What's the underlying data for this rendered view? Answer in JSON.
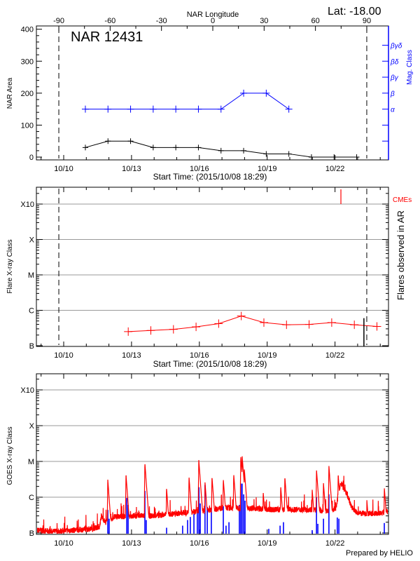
{
  "chart_data": [
    {
      "type": "line",
      "title": "NAR 12431",
      "lat_label": "Lat: -18.00",
      "top_axis_label": "NAR Longitude",
      "top_ticks": [
        "-90",
        "-60",
        "-30",
        "0",
        "30",
        "60",
        "90"
      ],
      "limb_longitudes": [
        -90,
        90
      ],
      "xlabel": "Start Time: (2015/10/08 18:29)",
      "x_ticks": [
        "10/10",
        "10/13",
        "10/16",
        "10/19",
        "10/22"
      ],
      "xlim": [
        "10/08 18:29",
        "10/24 08:50"
      ],
      "ylabel": "NAR Area",
      "ylim": [
        0,
        400
      ],
      "y_ticks": [
        "0",
        "100",
        "200",
        "300",
        "400"
      ],
      "y2label": "Mag. Class",
      "y2_ticks": [
        {
          "value": 50,
          "label": ""
        },
        {
          "value": 100,
          "label": ""
        },
        {
          "value": 150,
          "label": "α"
        },
        {
          "value": 200,
          "label": "β"
        },
        {
          "value": 250,
          "label": "βγ"
        },
        {
          "value": 300,
          "label": "βδ"
        },
        {
          "value": 350,
          "label": "βγδ"
        }
      ],
      "area_color": "#000000",
      "mag_color": "#0000ff",
      "times": [
        "10/10 23:00",
        "10/11 23:00",
        "10/12 23:00",
        "10/13 23:00",
        "10/14 23:00",
        "10/15 23:00",
        "10/16 23:00",
        "10/17 23:00",
        "10/18 23:00",
        "10/19 23:00",
        "10/20 23:00",
        "10/21 23:00",
        "10/22 23:00"
      ],
      "area_values": [
        30,
        50,
        50,
        30,
        30,
        30,
        20,
        20,
        10,
        10,
        0,
        0,
        0
      ],
      "mag_classes": [
        "α",
        "α",
        "α",
        "α",
        "α",
        "α",
        "α",
        "β",
        "β",
        "α"
      ]
    },
    {
      "type": "line",
      "xlabel": "Start Time: (2015/10/08 18:29)",
      "x_ticks": [
        "10/10",
        "10/13",
        "10/16",
        "10/19",
        "10/22"
      ],
      "xlim": [
        "10/08 18:29",
        "10/24 08:50"
      ],
      "ylabel": "Flare X-ray Class",
      "y_scale": "log",
      "y_ticks": [
        "B",
        "C",
        "M",
        "X",
        "X10"
      ],
      "ylim": [
        "B1.0",
        "X10+"
      ],
      "y2label": "Flares observed in AR",
      "cme_label": "CMEs",
      "cme_color": "#ff0000",
      "grid": true,
      "limb_longitudes": [
        -90,
        90
      ],
      "series": [
        {
          "color": "#ff0000",
          "times": [
            "10/12 20:30",
            "10/13 20:30",
            "10/14 20:30",
            "10/15 20:30",
            "10/16 20:30",
            "10/17 20:30",
            "10/18 20:30",
            "10/19 20:30",
            "10/20 20:30",
            "10/21 20:30",
            "10/22 20:30",
            "10/23 20:30"
          ],
          "values": [
            "B2.5",
            "B2.7",
            "B2.9",
            "B3.4",
            "B4.2",
            "B6.9",
            "B4.5",
            "B3.9",
            "B4.0",
            "B4.5",
            "B3.9",
            "B3.5"
          ]
        }
      ],
      "flares": [
        {
          "time": "10/23 06:40",
          "class": "B6.0"
        }
      ],
      "cmes": [
        "10/22 06:15"
      ]
    },
    {
      "type": "line",
      "x_ticks": [
        "10/10",
        "10/13",
        "10/16",
        "10/19",
        "10/22"
      ],
      "xlim": [
        "10/08 18:29",
        "10/24 08:50"
      ],
      "ylabel": "GOES X-ray Class",
      "y_scale": "log",
      "y_ticks": [
        "B",
        "C",
        "M",
        "X",
        "X10"
      ],
      "grid": true,
      "footer": "Prepared by HELIO",
      "series": [
        {
          "color": "#ff0000",
          "baseline": [
            [
              "10/08 18:29",
              "B1.2"
            ],
            [
              "10/09 12:00",
              "B1.1"
            ],
            [
              "10/10 12:00",
              "B1.2"
            ],
            [
              "10/11 06:00",
              "B1.3"
            ],
            [
              "10/11 14:00",
              "B1.5"
            ],
            [
              "10/11 16:00",
              "B3.0"
            ],
            [
              "10/11 20:00",
              "B2.0"
            ],
            [
              "10/12 06:00",
              "B2.8"
            ],
            [
              "10/13 00:00",
              "B3.0"
            ],
            [
              "10/14 00:00",
              "B3.0"
            ],
            [
              "10/15 00:00",
              "B3.5"
            ],
            [
              "10/16 00:00",
              "B4.0"
            ],
            [
              "10/17 00:00",
              "B5.0"
            ],
            [
              "10/18 06:00",
              "B5.0"
            ],
            [
              "10/19 00:00",
              "B4.5"
            ],
            [
              "10/20 00:00",
              "B4.5"
            ],
            [
              "10/21 00:00",
              "B4.5"
            ],
            [
              "10/21 20:00",
              "B4.0"
            ],
            [
              "10/22 01:00",
              "B5.0"
            ],
            [
              "10/22 06:00",
              "C2.5"
            ],
            [
              "10/22 12:00",
              "C1.3"
            ],
            [
              "10/22 18:00",
              "B5.0"
            ],
            [
              "10/23 00:00",
              "B3.5"
            ],
            [
              "10/24 00:00",
              "B3.5"
            ],
            [
              "10/24 08:50",
              "B4.0"
            ]
          ],
          "peaks": [
            [
              "10/11 22:48",
              "C3.1"
            ],
            [
              "10/12 18:07",
              "C4.4"
            ],
            [
              "10/13 14:10",
              "M0.9"
            ],
            [
              "10/14 13:10",
              "C1.8"
            ],
            [
              "10/15 13:00",
              "C3.7"
            ],
            [
              "10/15 23:25",
              "M1.1"
            ],
            [
              "10/16 06:00",
              "C2.7"
            ],
            [
              "10/16 13:25",
              "C3.7"
            ],
            [
              "10/17 01:25",
              "C3.2"
            ],
            [
              "10/17 12:30",
              "C4.4"
            ],
            [
              "10/17 20:00",
              "M1.4"
            ],
            [
              "10/17 21:30",
              "M1.4"
            ],
            [
              "10/17 23:45",
              "C6.3"
            ],
            [
              "10/18 19:45",
              "C1.4"
            ],
            [
              "10/19 14:20",
              "C2.0"
            ],
            [
              "10/19 18:45",
              "C3.7"
            ],
            [
              "10/20 23:45",
              "C1.7"
            ],
            [
              "10/21 04:20",
              "C6.0"
            ],
            [
              "10/21 11:45",
              "C2.5"
            ],
            [
              "10/21 17:30",
              "C7.6"
            ],
            [
              "10/22 03:20",
              "C4.4"
            ],
            [
              "10/23 09:50",
              "B8.3"
            ],
            [
              "10/24 04:20",
              "C1.9"
            ]
          ]
        },
        {
          "color": "#0000ff",
          "values": [
            [
              "10/11 22:48",
              "B4.4"
            ],
            [
              "10/12 00:14",
              "B2.5"
            ],
            [
              "10/12 18:58",
              "B9.5"
            ],
            [
              "10/12 20:24",
              "B6.1"
            ],
            [
              "10/13 14:10",
              "C1.5"
            ],
            [
              "10/13 15:36",
              "B2.3"
            ],
            [
              "10/14 13:12",
              "B1.4"
            ],
            [
              "10/15 06:14",
              "B1.6"
            ],
            [
              "10/15 11:31",
              "B2.3"
            ],
            [
              "10/15 14:24",
              "B2.8"
            ],
            [
              "10/15 18:14",
              "B3.4"
            ],
            [
              "10/15 21:50",
              "B3.9"
            ],
            [
              "10/15 23:31",
              "C1.9"
            ],
            [
              "10/16 00:58",
              "B6.7"
            ],
            [
              "10/16 06:00",
              "C2.2"
            ],
            [
              "10/16 08:24",
              "B5.3"
            ],
            [
              "10/16 12:43",
              "B4.9"
            ],
            [
              "10/17 01:26",
              "B5.6"
            ],
            [
              "10/17 04:19",
              "B1.6"
            ],
            [
              "10/17 07:26",
              "B2.0"
            ],
            [
              "10/17 18:29",
              "B6.1"
            ],
            [
              "10/17 19:55",
              "C2.4"
            ],
            [
              "10/17 21:22",
              "C2.4"
            ],
            [
              "10/17 23:02",
              "C1.2"
            ],
            [
              "10/18 00:29",
              "B8.0"
            ],
            [
              "10/19 01:41",
              "B1.3"
            ],
            [
              "10/19 13:41",
              "B1.6"
            ],
            [
              "10/19 17:17",
              "B2.0"
            ],
            [
              "10/20 23:46",
              "B1.2"
            ],
            [
              "10/21 04:19",
              "C1.0"
            ],
            [
              "10/21 05:46",
              "B1.8"
            ],
            [
              "10/21 11:46",
              "B2.5"
            ],
            [
              "10/21 17:31",
              "C1.2"
            ],
            [
              "10/22 02:24",
              "B2.7"
            ],
            [
              "10/22 04:05",
              "B2.5"
            ],
            [
              "10/24 04:19",
              "B1.9"
            ]
          ]
        }
      ]
    }
  ]
}
